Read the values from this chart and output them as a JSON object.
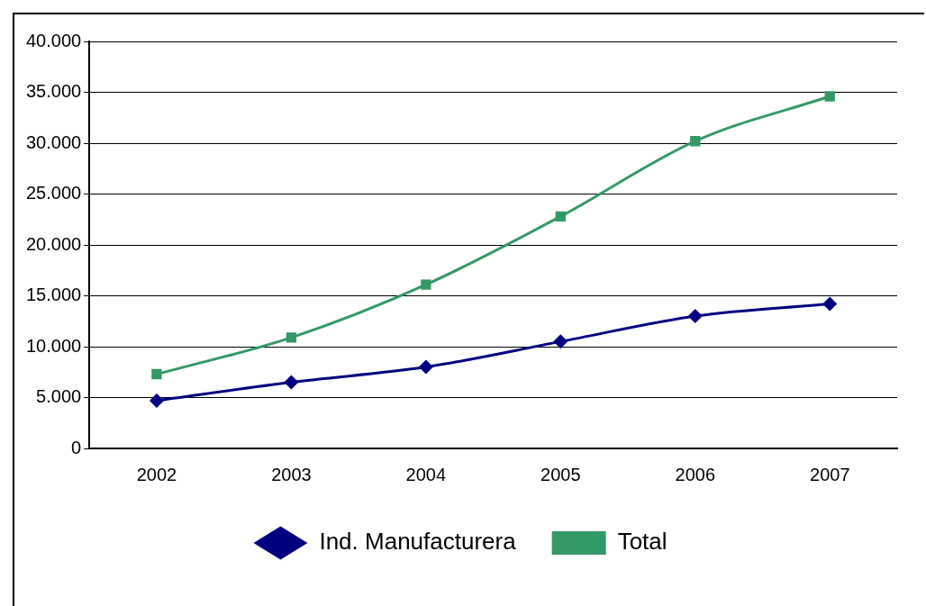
{
  "chart_data": {
    "type": "line",
    "categories": [
      "2002",
      "2003",
      "2004",
      "2005",
      "2006",
      "2007"
    ],
    "series": [
      {
        "name": "Ind. Manufacturera",
        "color": "#000080",
        "marker": "diamond",
        "values": [
          4700,
          6500,
          8000,
          10500,
          13000,
          14200
        ]
      },
      {
        "name": "Total",
        "color": "#339966",
        "marker": "square",
        "values": [
          7300,
          10900,
          16100,
          22800,
          30200,
          34600
        ]
      }
    ],
    "ylim": [
      0,
      40000
    ],
    "yticks": [
      {
        "value": 0,
        "label": "0"
      },
      {
        "value": 5000,
        "label": "5.000"
      },
      {
        "value": 10000,
        "label": "10.000"
      },
      {
        "value": 15000,
        "label": "15.000"
      },
      {
        "value": 20000,
        "label": "20.000"
      },
      {
        "value": 25000,
        "label": "25.000"
      },
      {
        "value": 30000,
        "label": "30.000"
      },
      {
        "value": 35000,
        "label": "35.000"
      },
      {
        "value": 40000,
        "label": "40.000"
      }
    ],
    "grid": "y",
    "legend": "bottom"
  }
}
